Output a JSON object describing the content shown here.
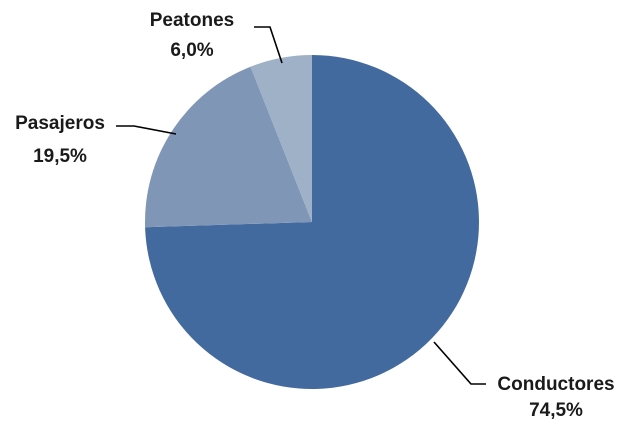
{
  "chart_data": {
    "type": "pie",
    "title": "",
    "slices": [
      {
        "name": "Conductores",
        "value": 74.5,
        "value_label": "74,5%",
        "color": "#436A9E"
      },
      {
        "name": "Pasajeros",
        "value": 19.5,
        "value_label": "19,5%",
        "color": "#7F96B6"
      },
      {
        "name": "Peatones",
        "value": 6.0,
        "value_label": "6,0%",
        "color": "#9FB1C6"
      }
    ],
    "start": "top",
    "direction": "clockwise",
    "legend": "none",
    "data_labels": "outside with leader lines"
  }
}
